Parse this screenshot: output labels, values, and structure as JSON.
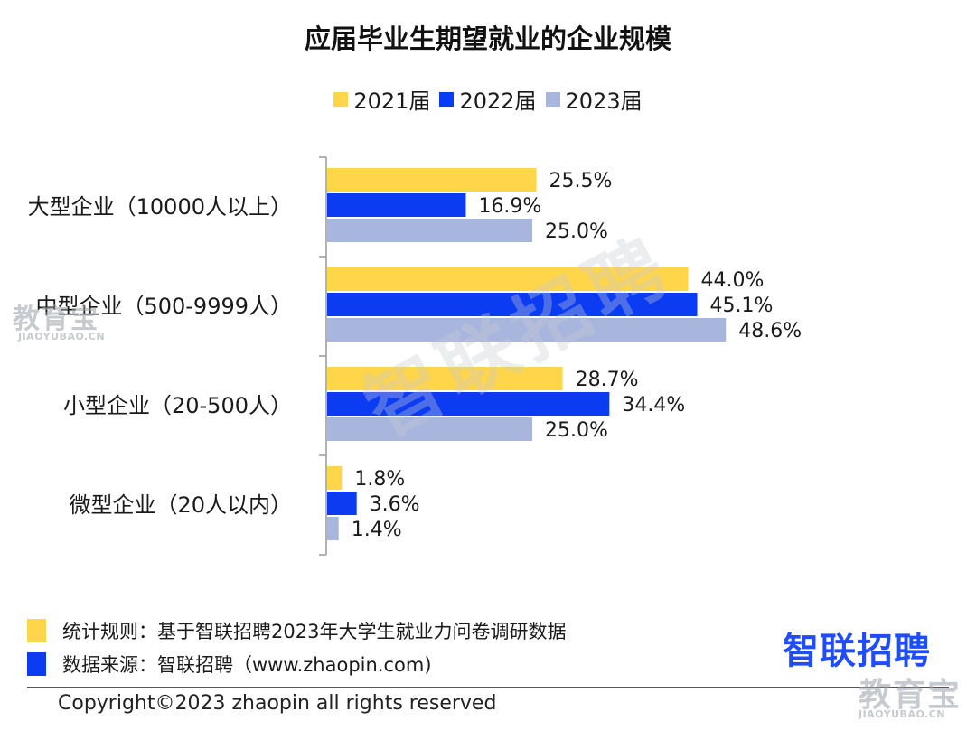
{
  "chart_data": {
    "type": "bar",
    "orientation": "horizontal",
    "title": "应届毕业生期望就业的企业规模",
    "categories": [
      "大型企业（10000人以上）",
      "中型企业（500-9999人）",
      "小型企业（20-500人）",
      "微型企业（20人以内）"
    ],
    "series": [
      {
        "name": "2021届",
        "color": "#ffd54a",
        "values": [
          25.5,
          44.0,
          28.7,
          1.8
        ],
        "labels": [
          "25.5%",
          "44.0%",
          "28.7%",
          "1.8%"
        ]
      },
      {
        "name": "2022届",
        "color": "#0b3cf2",
        "values": [
          16.9,
          45.1,
          34.4,
          3.6
        ],
        "labels": [
          "16.9%",
          "45.1%",
          "34.4%",
          "3.6%"
        ]
      },
      {
        "name": "2023届",
        "color": "#a8b6de",
        "values": [
          25.0,
          48.6,
          25.0,
          1.4
        ],
        "labels": [
          "25.0%",
          "48.6%",
          "25.0%",
          "1.4%"
        ]
      }
    ],
    "legend_position": "top-center",
    "grid": false
  },
  "notes": {
    "rule_text": "统计规则：基于智联招聘2023年大学生就业力问卷调研数据",
    "rule_color": "#ffd54a",
    "source_text": "数据来源：智联招聘（www.zhaopin.com)",
    "source_color": "#0b3cf2"
  },
  "brand": "智联招聘",
  "copyright": "Copyright©2023 zhaopin all rights reserved",
  "watermarks": {
    "site_cn": "教育宝",
    "site_domain": "JIAOYUBAO.CN",
    "center": "智联招聘"
  }
}
